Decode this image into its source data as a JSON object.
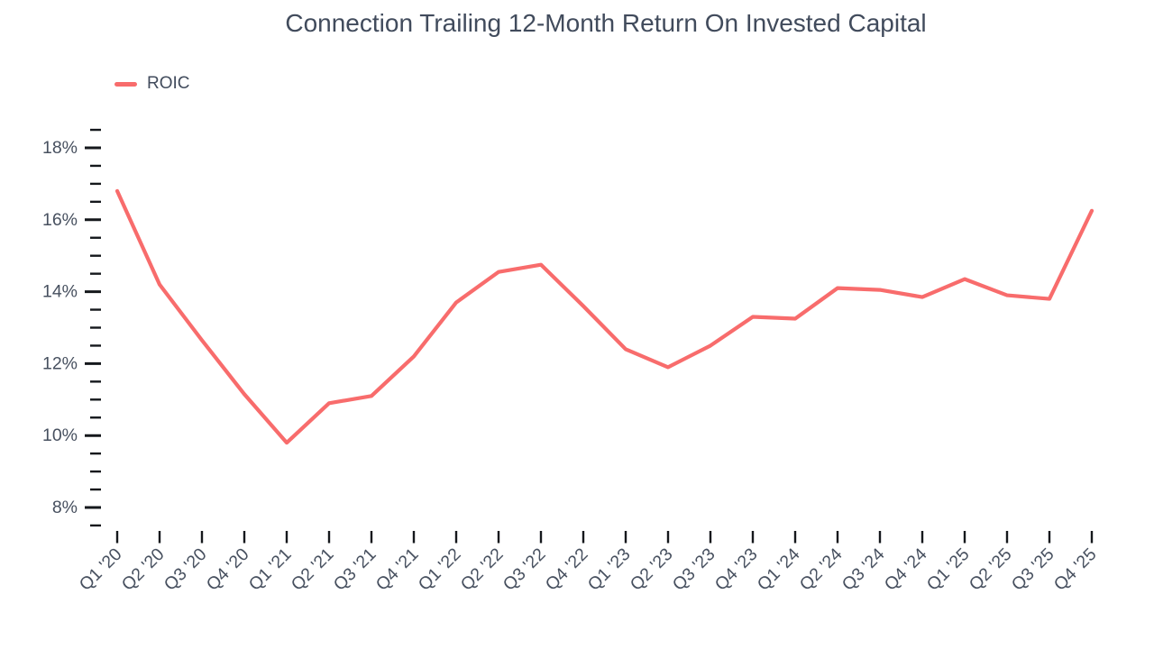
{
  "title": "Connection Trailing 12-Month Return On Invested Capital",
  "legend": {
    "items": [
      {
        "label": "ROIC",
        "color": "#F86C6C"
      }
    ]
  },
  "colors": {
    "line": "#F86C6C",
    "title_text": "#414B5C",
    "axis_label_text": "#47505F",
    "tick_mark": "#15181C",
    "background": "#FFFFFF"
  },
  "chart_data": {
    "type": "line",
    "title": "Connection Trailing 12-Month Return On Invested Capital",
    "legend_position": "top-left",
    "grid": false,
    "xlabel": "",
    "ylabel": "",
    "categories": [
      "Q1 '20",
      "Q2 '20",
      "Q3 '20",
      "Q4 '20",
      "Q1 '21",
      "Q2 '21",
      "Q3 '21",
      "Q4 '21",
      "Q1 '22",
      "Q2 '22",
      "Q3 '22",
      "Q4 '22",
      "Q1 '23",
      "Q2 '23",
      "Q3 '23",
      "Q4 '23",
      "Q1 '24",
      "Q2 '24",
      "Q3 '24",
      "Q4 '24",
      "Q1 '25",
      "Q2 '25",
      "Q3 '25",
      "Q4 '25"
    ],
    "series": [
      {
        "name": "ROIC",
        "color": "#F86C6C",
        "values": [
          16.8,
          14.2,
          12.65,
          11.15,
          9.8,
          10.9,
          11.1,
          12.2,
          13.7,
          14.55,
          14.75,
          13.6,
          12.4,
          11.9,
          12.5,
          13.3,
          13.25,
          14.1,
          14.05,
          13.85,
          14.35,
          13.9,
          13.8,
          16.25
        ]
      }
    ],
    "y_axis": {
      "unit": "%",
      "range_min": 7.5,
      "range_max": 18.5,
      "major_tick_step": 2,
      "minor_tick_step": 0.5,
      "major_ticks": [
        {
          "value": 8,
          "label": "8%"
        },
        {
          "value": 10,
          "label": "10%"
        },
        {
          "value": 12,
          "label": "12%"
        },
        {
          "value": 14,
          "label": "14%"
        },
        {
          "value": 16,
          "label": "16%"
        },
        {
          "value": 18,
          "label": "18%"
        }
      ]
    }
  }
}
